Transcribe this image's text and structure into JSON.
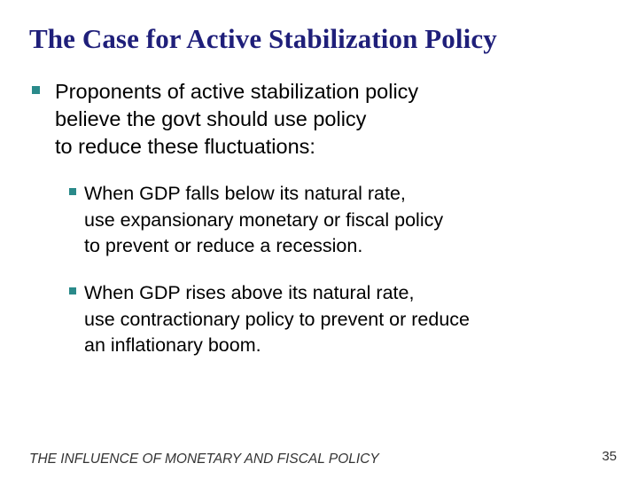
{
  "slide": {
    "title": "The Case for Active Stabilization Policy",
    "bullets": [
      {
        "level": 1,
        "lines": [
          "Proponents of active stabilization policy",
          "believe the govt should use policy",
          "to reduce these fluctuations:"
        ]
      },
      {
        "level": 2,
        "lines": [
          "When GDP falls below its natural rate,",
          "use expansionary monetary or fiscal policy",
          "to prevent or reduce a recession."
        ]
      },
      {
        "level": 2,
        "lines": [
          "When GDP rises above its natural rate,",
          "use contractionary policy to prevent or reduce",
          "an inflationary boom."
        ]
      }
    ],
    "footer": "THE INFLUENCE OF MONETARY AND FISCAL POLICY",
    "page_number": "35"
  },
  "colors": {
    "title": "#1f1f7a",
    "bullet": "#2a8a8a",
    "footer": "#333333"
  },
  "icons": {
    "bullet_marker": "square-bullet-icon"
  }
}
